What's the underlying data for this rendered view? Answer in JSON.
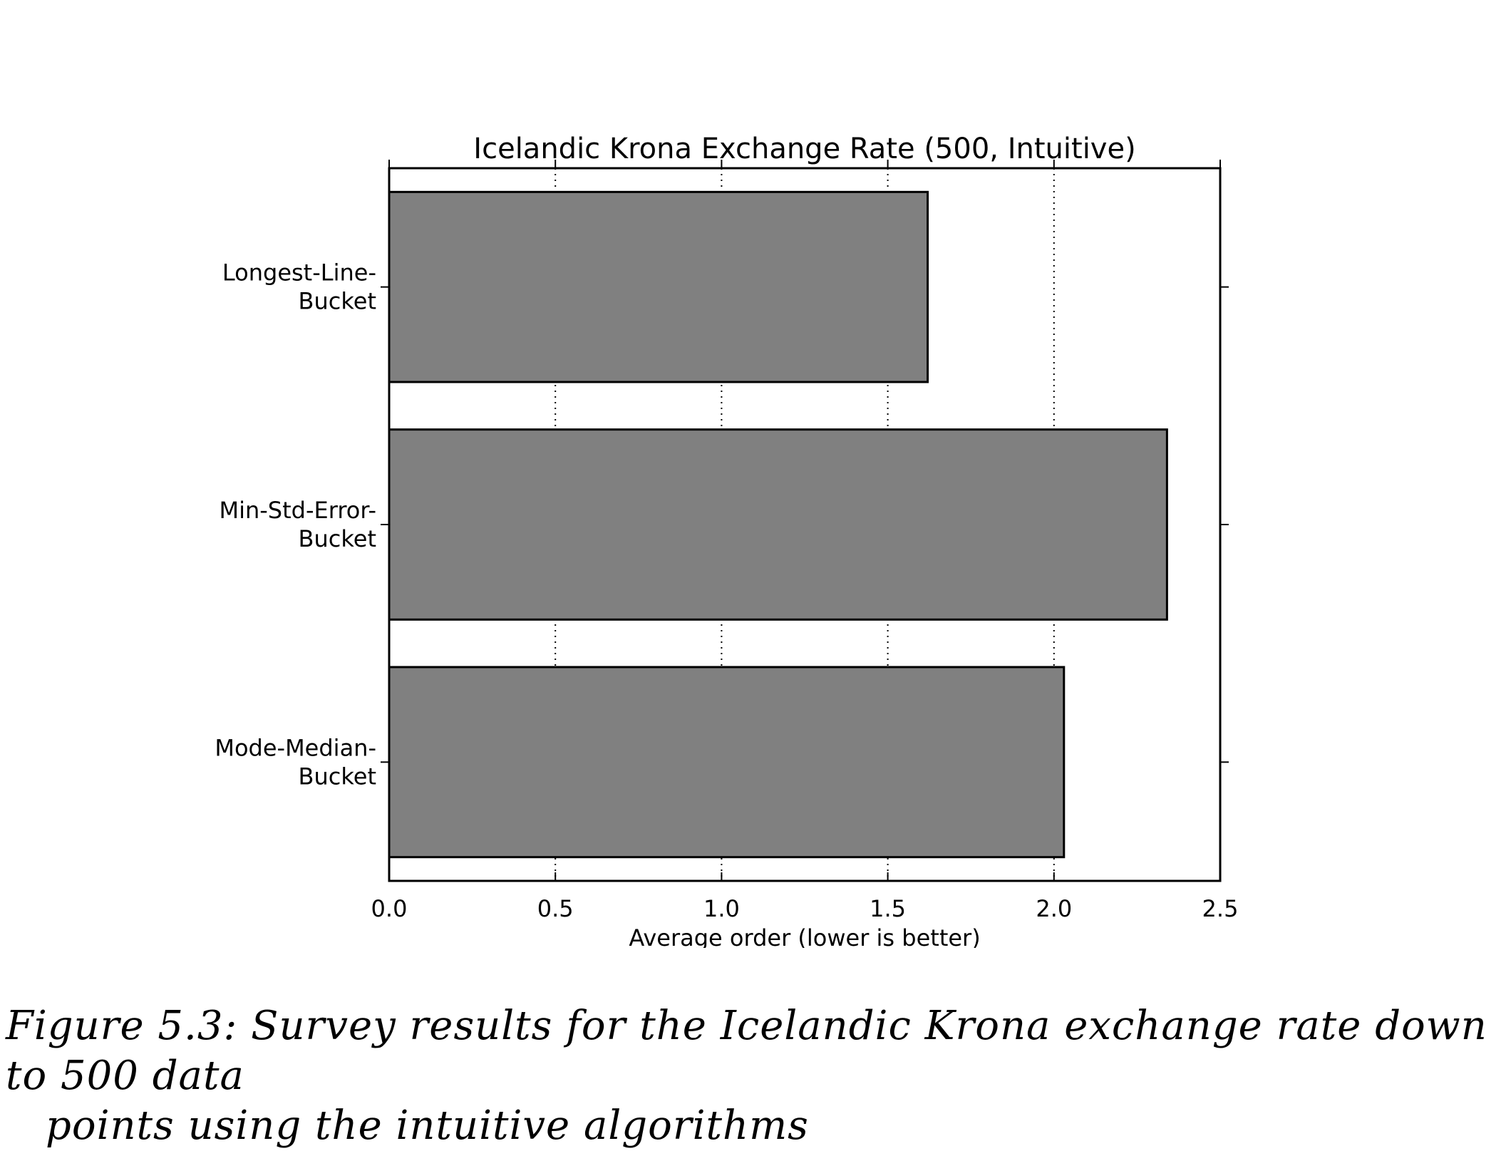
{
  "chart_data": {
    "type": "bar",
    "orientation": "horizontal",
    "title": "Icelandic Krona Exchange Rate (500, Intuitive)",
    "xlabel": "Average order (lower is better)",
    "ylabel": "",
    "xlim": [
      0,
      2.5
    ],
    "xticks": [
      "0.0",
      "0.5",
      "1.0",
      "1.5",
      "2.0",
      "2.5"
    ],
    "grid": "vertical dotted",
    "categories": [
      [
        "Longest-Line-",
        "Bucket"
      ],
      [
        "Min-Std-Error-",
        "Bucket"
      ],
      [
        "Mode-Median-",
        "Bucket"
      ]
    ],
    "values": [
      1.62,
      2.34,
      2.03
    ],
    "bar_color": "#808080",
    "edge_color": "#000000"
  },
  "caption": {
    "line1": "Figure 5.3: Survey results for the Icelandic Krona exchange rate down to 500 data",
    "line2": "points using the intuitive algorithms"
  }
}
